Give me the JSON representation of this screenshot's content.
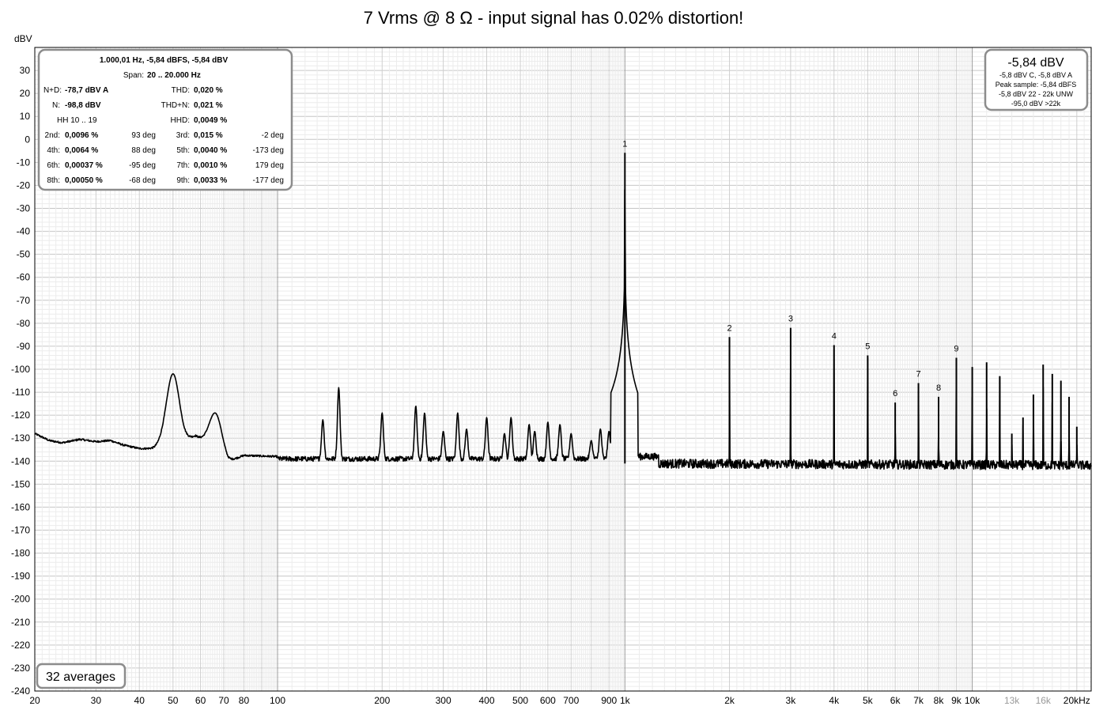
{
  "chart_data": {
    "type": "line",
    "title": "7 Vrms @ 8 Ω - input signal has 0.02% distortion!",
    "ylabel": "dBV",
    "xscale": "log",
    "xlim": [
      20,
      22000
    ],
    "ylim": [
      -240,
      40
    ],
    "grid": true,
    "y_ticks": [
      30,
      20,
      10,
      0,
      -10,
      -20,
      -30,
      -40,
      -50,
      -60,
      -70,
      -80,
      -90,
      -100,
      -110,
      -120,
      -130,
      -140,
      -150,
      -160,
      -170,
      -180,
      -190,
      -200,
      -210,
      -220,
      -230,
      -240
    ],
    "x_ticks": [
      {
        "value": 20,
        "label": "20"
      },
      {
        "value": 30,
        "label": "30"
      },
      {
        "value": 40,
        "label": "40"
      },
      {
        "value": 50,
        "label": "50"
      },
      {
        "value": 60,
        "label": "60"
      },
      {
        "value": 70,
        "label": "70"
      },
      {
        "value": 80,
        "label": "80"
      },
      {
        "value": 100,
        "label": "100"
      },
      {
        "value": 200,
        "label": "200"
      },
      {
        "value": 300,
        "label": "300"
      },
      {
        "value": 400,
        "label": "400"
      },
      {
        "value": 500,
        "label": "500"
      },
      {
        "value": 600,
        "label": "600"
      },
      {
        "value": 700,
        "label": "700"
      },
      {
        "value": 900,
        "label": "900"
      },
      {
        "value": 1000,
        "label": "1k"
      },
      {
        "value": 2000,
        "label": "2k"
      },
      {
        "value": 3000,
        "label": "3k"
      },
      {
        "value": 4000,
        "label": "4k"
      },
      {
        "value": 5000,
        "label": "5k"
      },
      {
        "value": 6000,
        "label": "6k"
      },
      {
        "value": 7000,
        "label": "7k"
      },
      {
        "value": 8000,
        "label": "8k"
      },
      {
        "value": 9000,
        "label": "9k"
      },
      {
        "value": 10000,
        "label": "10k"
      },
      {
        "value": 13000,
        "label": "13k",
        "muted": true
      },
      {
        "value": 16000,
        "label": "16k",
        "muted": true
      },
      {
        "value": 20000,
        "label": "20kHz"
      }
    ],
    "noise_floor_db": -141,
    "fundamental": {
      "freq": 1000,
      "db": -5.84,
      "label": "1"
    },
    "harmonic_markers": [
      {
        "freq": 2000,
        "db": -86,
        "label": "2"
      },
      {
        "freq": 3000,
        "db": -82,
        "label": "3"
      },
      {
        "freq": 4000,
        "db": -89.5,
        "label": "4"
      },
      {
        "freq": 5000,
        "db": -94,
        "label": "5"
      },
      {
        "freq": 6000,
        "db": -114.5,
        "label": "6"
      },
      {
        "freq": 7000,
        "db": -106,
        "label": "7"
      },
      {
        "freq": 8000,
        "db": -112,
        "label": "8"
      },
      {
        "freq": 9000,
        "db": -95,
        "label": "9"
      }
    ],
    "unlabeled_harmonics": [
      {
        "freq": 10000,
        "db": -99
      },
      {
        "freq": 11000,
        "db": -97
      },
      {
        "freq": 12000,
        "db": -103
      },
      {
        "freq": 13000,
        "db": -128
      },
      {
        "freq": 14000,
        "db": -121
      },
      {
        "freq": 15000,
        "db": -111
      },
      {
        "freq": 16000,
        "db": -98
      },
      {
        "freq": 17000,
        "db": -102
      },
      {
        "freq": 18000,
        "db": -105
      },
      {
        "freq": 19000,
        "db": -112
      },
      {
        "freq": 20000,
        "db": -125
      }
    ],
    "low_frequency_spurs": [
      {
        "freq": 50,
        "db": -102
      },
      {
        "freq": 66,
        "db": -119
      },
      {
        "freq": 135,
        "db": -122
      },
      {
        "freq": 150,
        "db": -108
      },
      {
        "freq": 200,
        "db": -119
      },
      {
        "freq": 250,
        "db": -116
      },
      {
        "freq": 265,
        "db": -119
      },
      {
        "freq": 300,
        "db": -127
      },
      {
        "freq": 330,
        "db": -119
      },
      {
        "freq": 350,
        "db": -126
      },
      {
        "freq": 400,
        "db": -121
      },
      {
        "freq": 450,
        "db": -128
      },
      {
        "freq": 470,
        "db": -121
      },
      {
        "freq": 530,
        "db": -124
      },
      {
        "freq": 550,
        "db": -127
      },
      {
        "freq": 600,
        "db": -123
      },
      {
        "freq": 650,
        "db": -124
      },
      {
        "freq": 700,
        "db": -128
      },
      {
        "freq": 800,
        "db": -131
      },
      {
        "freq": 850,
        "db": -126
      },
      {
        "freq": 900,
        "db": -127
      }
    ],
    "low_end_curve": [
      {
        "x": 20,
        "y": -128
      },
      {
        "x": 22,
        "y": -131
      },
      {
        "x": 24,
        "y": -132
      },
      {
        "x": 27,
        "y": -130.5
      },
      {
        "x": 30,
        "y": -131.5
      },
      {
        "x": 33,
        "y": -131
      },
      {
        "x": 36,
        "y": -133
      },
      {
        "x": 40,
        "y": -134.5
      },
      {
        "x": 44,
        "y": -134.5
      },
      {
        "x": 58,
        "y": -129
      },
      {
        "x": 72,
        "y": -140
      },
      {
        "x": 80,
        "y": -137.5
      },
      {
        "x": 100,
        "y": -138
      }
    ]
  },
  "info_panel": {
    "header": "1.000,01 Hz, -5,84 dBFS, -5,84 dBV",
    "span_label": "Span:",
    "span_value": "20 .. 20.000 Hz",
    "rows": [
      [
        {
          "label": "N+D:",
          "value": "-78,7 dBV A"
        },
        {
          "label": "THD:",
          "value": "0,020 %"
        }
      ],
      [
        {
          "label": "N:",
          "value": "-98,8 dBV"
        },
        {
          "label": "THD+N:",
          "value": "0,021 %"
        }
      ],
      [
        {
          "label": "HH 10 .. 19",
          "value": ""
        },
        {
          "label": "HHD:",
          "value": "0,0049 %"
        }
      ]
    ],
    "harmonics": [
      {
        "a_label": "2nd:",
        "a_value": "0,0096 %",
        "a_phase": "93 deg",
        "b_label": "3rd:",
        "b_value": "0,015 %",
        "b_phase": "-2 deg"
      },
      {
        "a_label": "4th:",
        "a_value": "0,0064 %",
        "a_phase": "88 deg",
        "b_label": "5th:",
        "b_value": "0,0040 %",
        "b_phase": "-173 deg"
      },
      {
        "a_label": "6th:",
        "a_value": "0,00037 %",
        "a_phase": "-95 deg",
        "b_label": "7th:",
        "b_value": "0,0010 %",
        "b_phase": "179 deg"
      },
      {
        "a_label": "8th:",
        "a_value": "0,00050 %",
        "a_phase": "-68 deg",
        "b_label": "9th:",
        "b_value": "0,0033 %",
        "b_phase": "-177 deg"
      }
    ]
  },
  "level_panel": {
    "main": "-5,84 dBV",
    "lines": [
      "-5,8 dBV C, -5,8 dBV A",
      "Peak sample: -5,84 dBFS",
      "-5,8 dBV 22 - 22k UNW",
      "-95,0 dBV >22k"
    ]
  },
  "averages_label": "32 averages",
  "colors": {
    "trace": "#000000",
    "grid": "#d8d8d8",
    "grid_major": "#9c9c9c",
    "panel_border": "#8c8c8c",
    "muted_tick": "#9a9a9a"
  }
}
